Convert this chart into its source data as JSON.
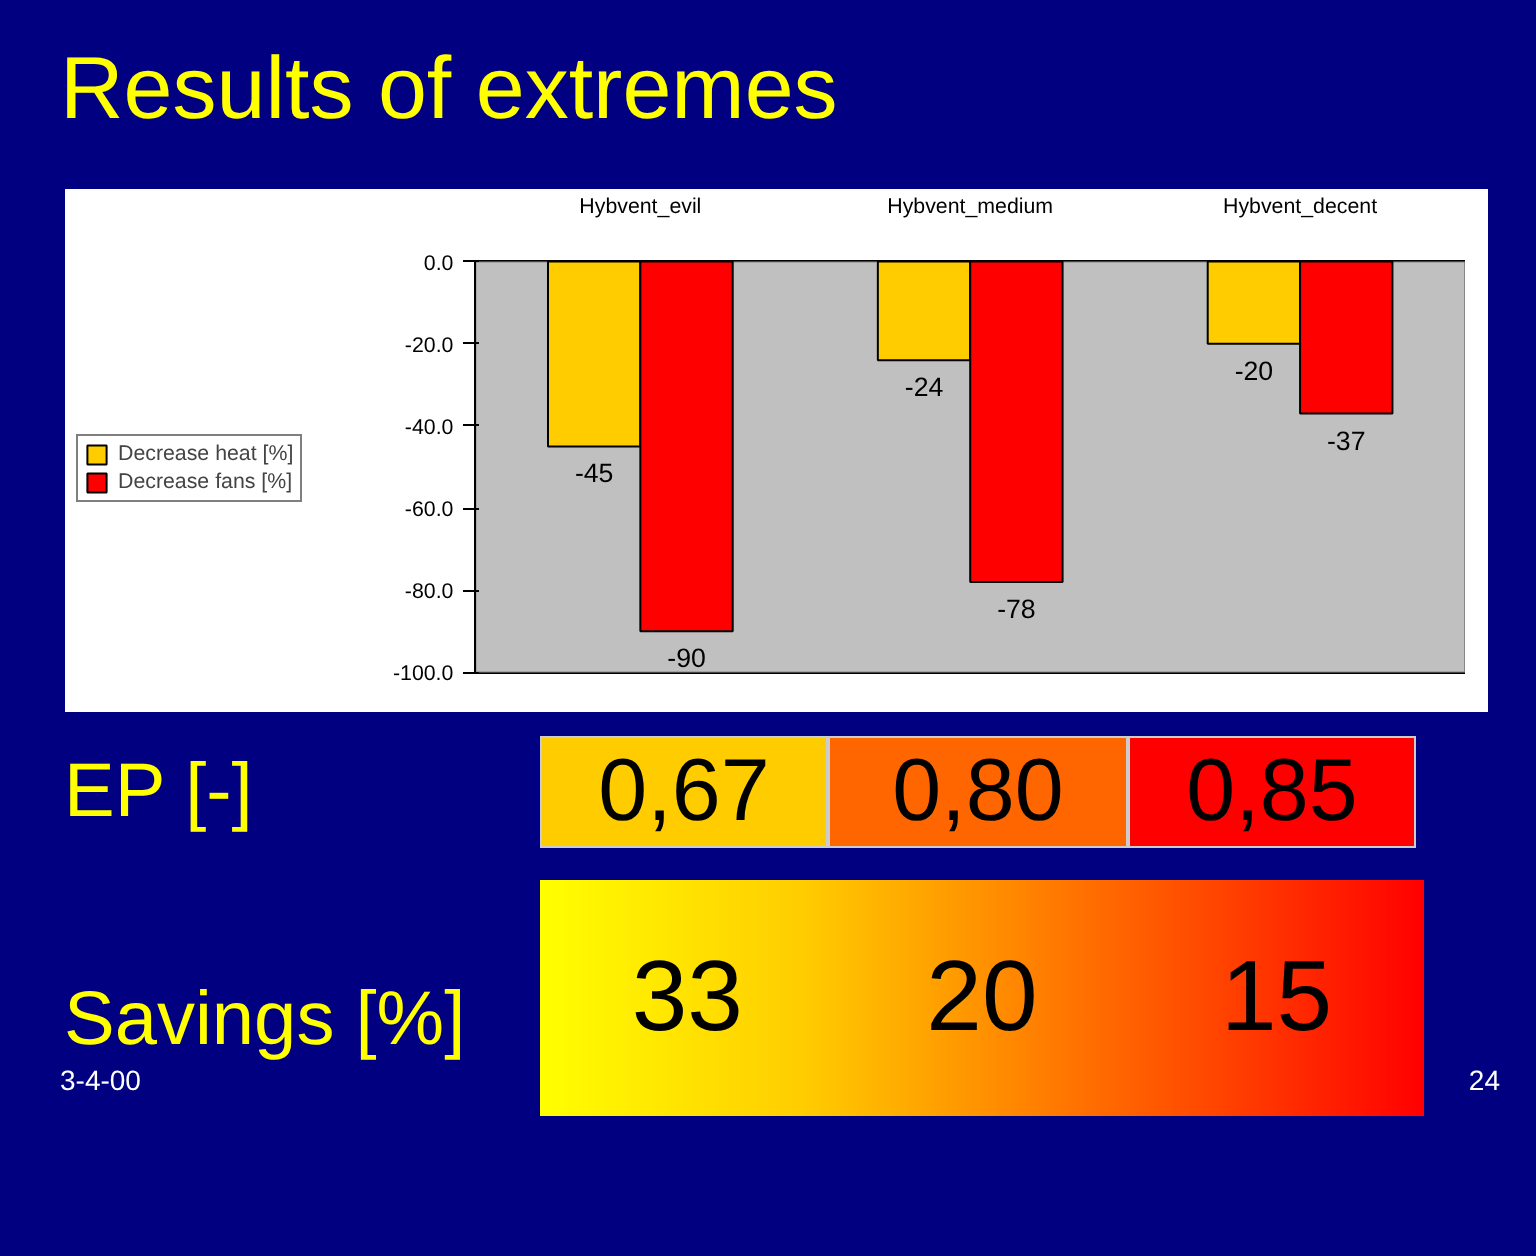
{
  "chart_data": {
    "type": "bar",
    "title": "Results of extremes",
    "categories": [
      "Hybvent_evil",
      "Hybvent_medium",
      "Hybvent_decent"
    ],
    "series": [
      {
        "name": "Decrease heat [%]",
        "color": "#ffcc00",
        "values": [
          -45,
          -24,
          -20
        ]
      },
      {
        "name": "Decrease fans [%]",
        "color": "#ff0000",
        "values": [
          -90,
          -78,
          -37
        ]
      }
    ],
    "ylim": [
      -100,
      0
    ],
    "yticks": [
      {
        "value": -100,
        "label": "-100.0"
      },
      {
        "value": -80,
        "label": "-80.0"
      },
      {
        "value": -60,
        "label": "-60.0"
      },
      {
        "value": -40,
        "label": "-40.0"
      },
      {
        "value": -20,
        "label": "-20.0"
      },
      {
        "value": 0,
        "label": "0.0"
      }
    ],
    "grid": "y",
    "legend": "left",
    "data_labels": true,
    "annotations": [
      "EP [-]",
      "0,67",
      "0,80",
      "0,85",
      "Savings [%]",
      "33",
      "20",
      "15",
      "3-4-00",
      "24"
    ]
  }
}
